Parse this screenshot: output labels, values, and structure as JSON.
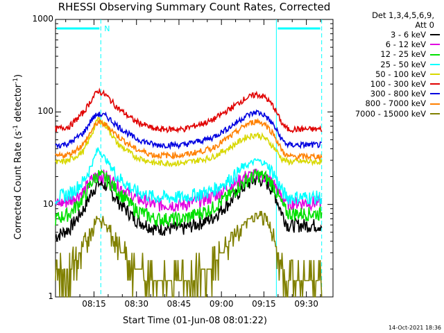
{
  "title": "RHESSI Observing Summary Count Rates, Corrected",
  "footer_timestamp": "14-Oct-2021 18:36",
  "legend": {
    "header_line1": "Det 1,3,4,5,6,9,",
    "header_line2": "Att 0",
    "entries": [
      {
        "label": "3 - 6 keV",
        "color": "#000000"
      },
      {
        "label": "6 - 12 keV",
        "color": "#e000e0"
      },
      {
        "label": "12 - 25 keV",
        "color": "#00e000"
      },
      {
        "label": "25 - 50 keV",
        "color": "#00ffff"
      },
      {
        "label": "50 - 100 keV",
        "color": "#d8d800"
      },
      {
        "label": "100 - 300 keV",
        "color": "#e00000"
      },
      {
        "label": "300 - 800 keV",
        "color": "#0000e0"
      },
      {
        "label": "800 - 7000 keV",
        "color": "#ff8000"
      },
      {
        "label": "7000 - 15000 keV",
        "color": "#808000"
      }
    ]
  },
  "chart_data": {
    "type": "line",
    "title": "RHESSI Observing Summary Count Rates, Corrected",
    "xlabel": "Start Time (01-Jun-08 08:01:22)",
    "ylabel": "Corrected Count Rate (s^-1 detector^-1)",
    "y_scale": "log",
    "ylim": [
      1,
      1000
    ],
    "y_ticks": [
      "1",
      "10",
      "100",
      "1000"
    ],
    "x_unit": "minutes after 08:01:22",
    "xlim": [
      0,
      98
    ],
    "x_ticks": [
      {
        "label": "08:15",
        "value": 13.6
      },
      {
        "label": "08:30",
        "value": 28.6
      },
      {
        "label": "08:45",
        "value": 43.6
      },
      {
        "label": "09:00",
        "value": 58.6
      },
      {
        "label": "09:15",
        "value": 73.6
      },
      {
        "label": "09:30",
        "value": 88.6
      }
    ],
    "x": [
      0,
      5,
      10,
      13,
      15,
      18,
      22,
      28,
      35,
      45,
      55,
      62,
      67,
      71,
      74,
      77,
      80,
      82
    ],
    "series": [
      {
        "name": "3 - 6 keV",
        "color": "#000000",
        "values": [
          4.5,
          5.5,
          9,
          14,
          17,
          16,
          11,
          7,
          5.5,
          5.5,
          7,
          11,
          16,
          19,
          18,
          14,
          8,
          6
        ]
      },
      {
        "name": "6 - 12 keV",
        "color": "#e000e0",
        "values": [
          10,
          11,
          14,
          19,
          21,
          20,
          16,
          12,
          10,
          10,
          12,
          16,
          20,
          21,
          20,
          17,
          12,
          10.5
        ]
      },
      {
        "name": "12 - 25 keV",
        "color": "#00e000",
        "values": [
          7,
          8,
          12,
          18,
          21,
          19,
          14,
          9,
          7,
          7,
          9,
          13,
          18,
          21,
          20,
          16,
          10,
          8
        ]
      },
      {
        "name": "25 - 50 keV",
        "color": "#00ffff",
        "values": [
          12,
          13,
          18,
          28,
          40,
          30,
          20,
          14,
          12,
          12,
          14,
          19,
          26,
          30,
          28,
          22,
          14,
          12
        ]
      },
      {
        "name": "50 - 100 keV",
        "color": "#d8d800",
        "values": [
          28,
          30,
          38,
          60,
          85,
          70,
          45,
          33,
          28,
          28,
          32,
          42,
          53,
          57,
          52,
          42,
          31,
          29
        ]
      },
      {
        "name": "100 - 300 keV",
        "color": "#e00000",
        "values": [
          65,
          70,
          100,
          140,
          170,
          150,
          110,
          80,
          65,
          65,
          80,
          110,
          140,
          155,
          145,
          115,
          75,
          65
        ]
      },
      {
        "name": "300 - 800 keV",
        "color": "#0000e0",
        "values": [
          43,
          46,
          60,
          85,
          95,
          90,
          70,
          52,
          44,
          44,
          52,
          70,
          90,
          100,
          92,
          72,
          50,
          44
        ]
      },
      {
        "name": "800 - 7000 keV",
        "color": "#ff8000",
        "values": [
          33,
          35,
          45,
          65,
          78,
          72,
          55,
          40,
          34,
          34,
          40,
          55,
          72,
          80,
          74,
          58,
          38,
          33
        ]
      },
      {
        "name": "7000 - 15000 keV",
        "color": "#808000",
        "values": [
          1.7,
          2,
          3.5,
          5.5,
          7,
          6,
          3.5,
          2,
          1.5,
          1.5,
          2.2,
          4,
          6.5,
          8,
          7,
          4.5,
          2,
          1.5
        ]
      }
    ],
    "flags": [
      {
        "label": "N",
        "start": 16,
        "color": "#00ffff"
      }
    ],
    "flag_bars": [
      [
        0,
        16
      ],
      [
        78,
        94
      ]
    ],
    "dashed_lines": [
      16,
      94
    ],
    "solid_lines": [
      78
    ]
  }
}
